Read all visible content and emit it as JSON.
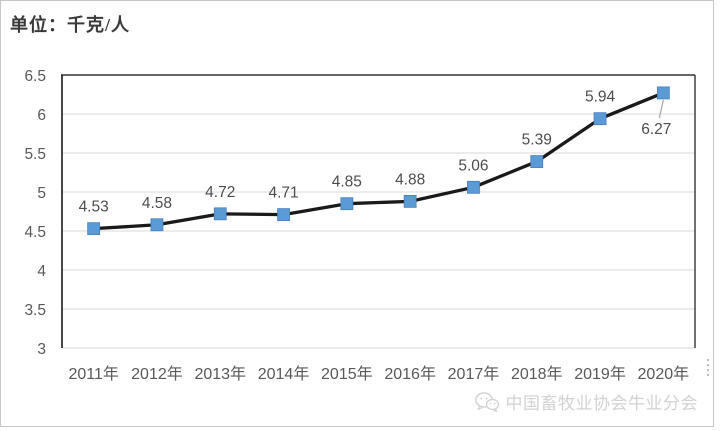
{
  "header": {
    "unit_label": "单位：千克/人"
  },
  "chart_data": {
    "type": "line",
    "title": "单位：千克/人",
    "categories": [
      "2011年",
      "2012年",
      "2013年",
      "2014年",
      "2015年",
      "2016年",
      "2017年",
      "2018年",
      "2019年",
      "2020年"
    ],
    "values": [
      4.53,
      4.58,
      4.72,
      4.71,
      4.85,
      4.88,
      5.06,
      5.39,
      5.94,
      6.27
    ],
    "data_labels": [
      "4.53",
      "4.58",
      "4.72",
      "4.71",
      "4.85",
      "4.88",
      "5.06",
      "5.39",
      "5.94",
      "6.27"
    ],
    "xlabel": "",
    "ylabel": "",
    "ylim": [
      3,
      6.5
    ],
    "ytick_step": 0.5,
    "yticks": [
      "6.5",
      "6",
      "5.5",
      "5",
      "4.5",
      "4",
      "3.5",
      "3"
    ],
    "grid": true,
    "legend": "none",
    "last_label_position": "below-with-leader",
    "colors": {
      "line": "#1a1a1a",
      "marker": "#5b9bd5",
      "marker_edge": "#4a7ebb",
      "grid": "#d9d9d9",
      "plot_border": "#333333",
      "tick_text": "#595959",
      "label_text": "#4d4d4d",
      "leader": "#a6a6a6"
    }
  },
  "footer": {
    "watermark_text": "中国畜牧业协会牛业分会",
    "watermark_icon": "wechat-icon"
  }
}
